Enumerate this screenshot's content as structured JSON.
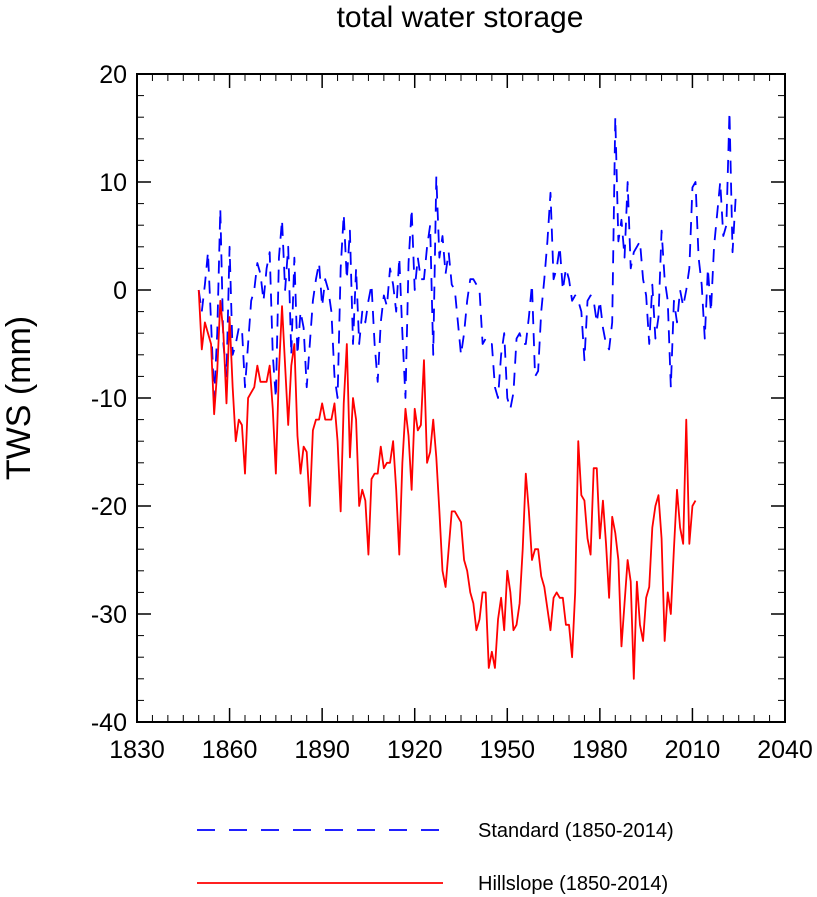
{
  "chart_data": {
    "type": "line",
    "title": "total water storage",
    "xlabel": "",
    "ylabel": "TWS  (mm)",
    "xlim": [
      1830,
      2040
    ],
    "ylim": [
      -40,
      20
    ],
    "xticks": [
      1830,
      1860,
      1890,
      1920,
      1950,
      1980,
      2010,
      2040
    ],
    "yticks": [
      20,
      10,
      0,
      -10,
      -20,
      -30,
      -40
    ],
    "x_start": 1850,
    "series": [
      {
        "name": "Standard (1850-2014)",
        "color": "#0000ff",
        "dash": "dashed",
        "values": [
          0.0,
          -2.0,
          0.5,
          3.5,
          -3.0,
          -10.0,
          -4.0,
          7.5,
          -5.0,
          -8.0,
          4.0,
          -6.0,
          -5.0,
          -3.5,
          -3.5,
          -9.0,
          -5.0,
          -1.0,
          0.0,
          2.5,
          1.5,
          -1.0,
          2.0,
          3.5,
          -6.0,
          -10.0,
          3.0,
          6.5,
          0.0,
          4.0,
          -6.0,
          3.0,
          -6.0,
          -2.0,
          -3.5,
          -9.0,
          -5.0,
          -1.0,
          1.0,
          2.5,
          -1.5,
          1.0,
          0.0,
          -2.0,
          -8.0,
          -10.0,
          2.0,
          7.0,
          1.0,
          5.5,
          -5.0,
          2.0,
          -5.0,
          -2.0,
          -3.0,
          -1.0,
          0.5,
          -5.0,
          -8.5,
          -3.0,
          -0.5,
          -1.5,
          2.0,
          0.5,
          -2.0,
          3.0,
          -4.0,
          -10.0,
          2.5,
          7.5,
          0.0,
          3.0,
          1.0,
          1.0,
          4.0,
          6.0,
          -6.0,
          10.5,
          3.0,
          5.0,
          1.5,
          3.5,
          0.5,
          0.0,
          -3.0,
          -6.0,
          -4.0,
          -1.0,
          1.0,
          1.0,
          0.5,
          0.0,
          -5.0,
          -4.5,
          -5.0,
          -5.0,
          -9.0,
          -10.0,
          -6.0,
          -4.0,
          -10.0,
          -11.0,
          -9.5,
          -4.5,
          -4.0,
          -5.0,
          -5.0,
          -2.5,
          0.5,
          -8.0,
          -7.5,
          -2.0,
          1.0,
          4.5,
          9.0,
          1.0,
          2.0,
          4.0,
          0.0,
          2.0,
          1.0,
          -1.0,
          -0.5,
          -1.0,
          -2.0,
          -6.5,
          -1.0,
          -0.5,
          -1.0,
          -3.0,
          -1.0,
          -3.5,
          -5.0,
          -5.5,
          -3.0,
          16.0,
          4.5,
          6.5,
          3.0,
          10.0,
          2.0,
          3.5,
          4.0,
          4.5,
          1.0,
          -0.5,
          -5.0,
          0.5,
          -4.5,
          -2.5,
          5.5,
          1.0,
          -1.0,
          -9.0,
          -1.0,
          -3.0,
          0.0,
          -1.5,
          0.0,
          2.0,
          9.5,
          10.0,
          3.0,
          0.5,
          -4.5,
          2.0,
          -2.0,
          4.0,
          7.0,
          10.0,
          5.0,
          6.0,
          16.5,
          3.5,
          8.5
        ]
      },
      {
        "name": "Hillslope (1850-2014)",
        "color": "#ff0000",
        "dash": "solid",
        "values": [
          0.0,
          -5.5,
          -3.0,
          -4.0,
          -5.0,
          -11.5,
          -7.5,
          -1.0,
          -4.0,
          -10.5,
          -2.5,
          -9.0,
          -14.0,
          -12.0,
          -12.5,
          -17.0,
          -10.0,
          -9.5,
          -9.0,
          -7.0,
          -8.5,
          -8.5,
          -8.5,
          -7.0,
          -11.0,
          -17.0,
          -7.5,
          -1.5,
          -7.0,
          -12.5,
          -7.0,
          -5.0,
          -13.5,
          -17.0,
          -14.5,
          -15.0,
          -20.0,
          -13.0,
          -12.0,
          -12.0,
          -10.5,
          -12.0,
          -12.0,
          -12.0,
          -10.5,
          -14.0,
          -20.5,
          -10.5,
          -5.0,
          -15.5,
          -10.0,
          -12.0,
          -20.0,
          -18.5,
          -19.5,
          -24.5,
          -17.5,
          -17.0,
          -17.0,
          -14.5,
          -16.5,
          -16.0,
          -16.0,
          -14.0,
          -18.5,
          -24.5,
          -16.0,
          -11.0,
          -13.5,
          -18.5,
          -11.0,
          -13.0,
          -12.5,
          -6.5,
          -16.0,
          -15.0,
          -12.0,
          -15.5,
          -20.5,
          -26.0,
          -27.5,
          -24.0,
          -20.5,
          -20.5,
          -21.0,
          -21.5,
          -25.0,
          -26.0,
          -28.0,
          -29.0,
          -31.5,
          -30.5,
          -28.0,
          -28.0,
          -35.0,
          -33.5,
          -35.0,
          -30.5,
          -28.5,
          -31.5,
          -26.0,
          -28.0,
          -31.5,
          -31.0,
          -29.0,
          -24.0,
          -17.0,
          -20.5,
          -25.0,
          -24.0,
          -24.0,
          -26.5,
          -27.5,
          -29.5,
          -31.5,
          -28.5,
          -28.0,
          -28.5,
          -28.5,
          -31.0,
          -31.0,
          -34.0,
          -28.0,
          -14.0,
          -19.0,
          -19.5,
          -23.0,
          -24.5,
          -16.5,
          -16.5,
          -23.0,
          -19.5,
          -23.5,
          -28.5,
          -21.0,
          -22.5,
          -25.0,
          -33.0,
          -29.0,
          -25.0,
          -27.0,
          -36.0,
          -27.0,
          -31.0,
          -32.5,
          -28.5,
          -27.5,
          -22.0,
          -20.0,
          -19.0,
          -23.0,
          -32.5,
          -28.0,
          -30.0,
          -24.0,
          -18.5,
          -22.0,
          -23.5,
          -12.0,
          -23.5,
          -20.0,
          -19.5
        ]
      }
    ]
  }
}
